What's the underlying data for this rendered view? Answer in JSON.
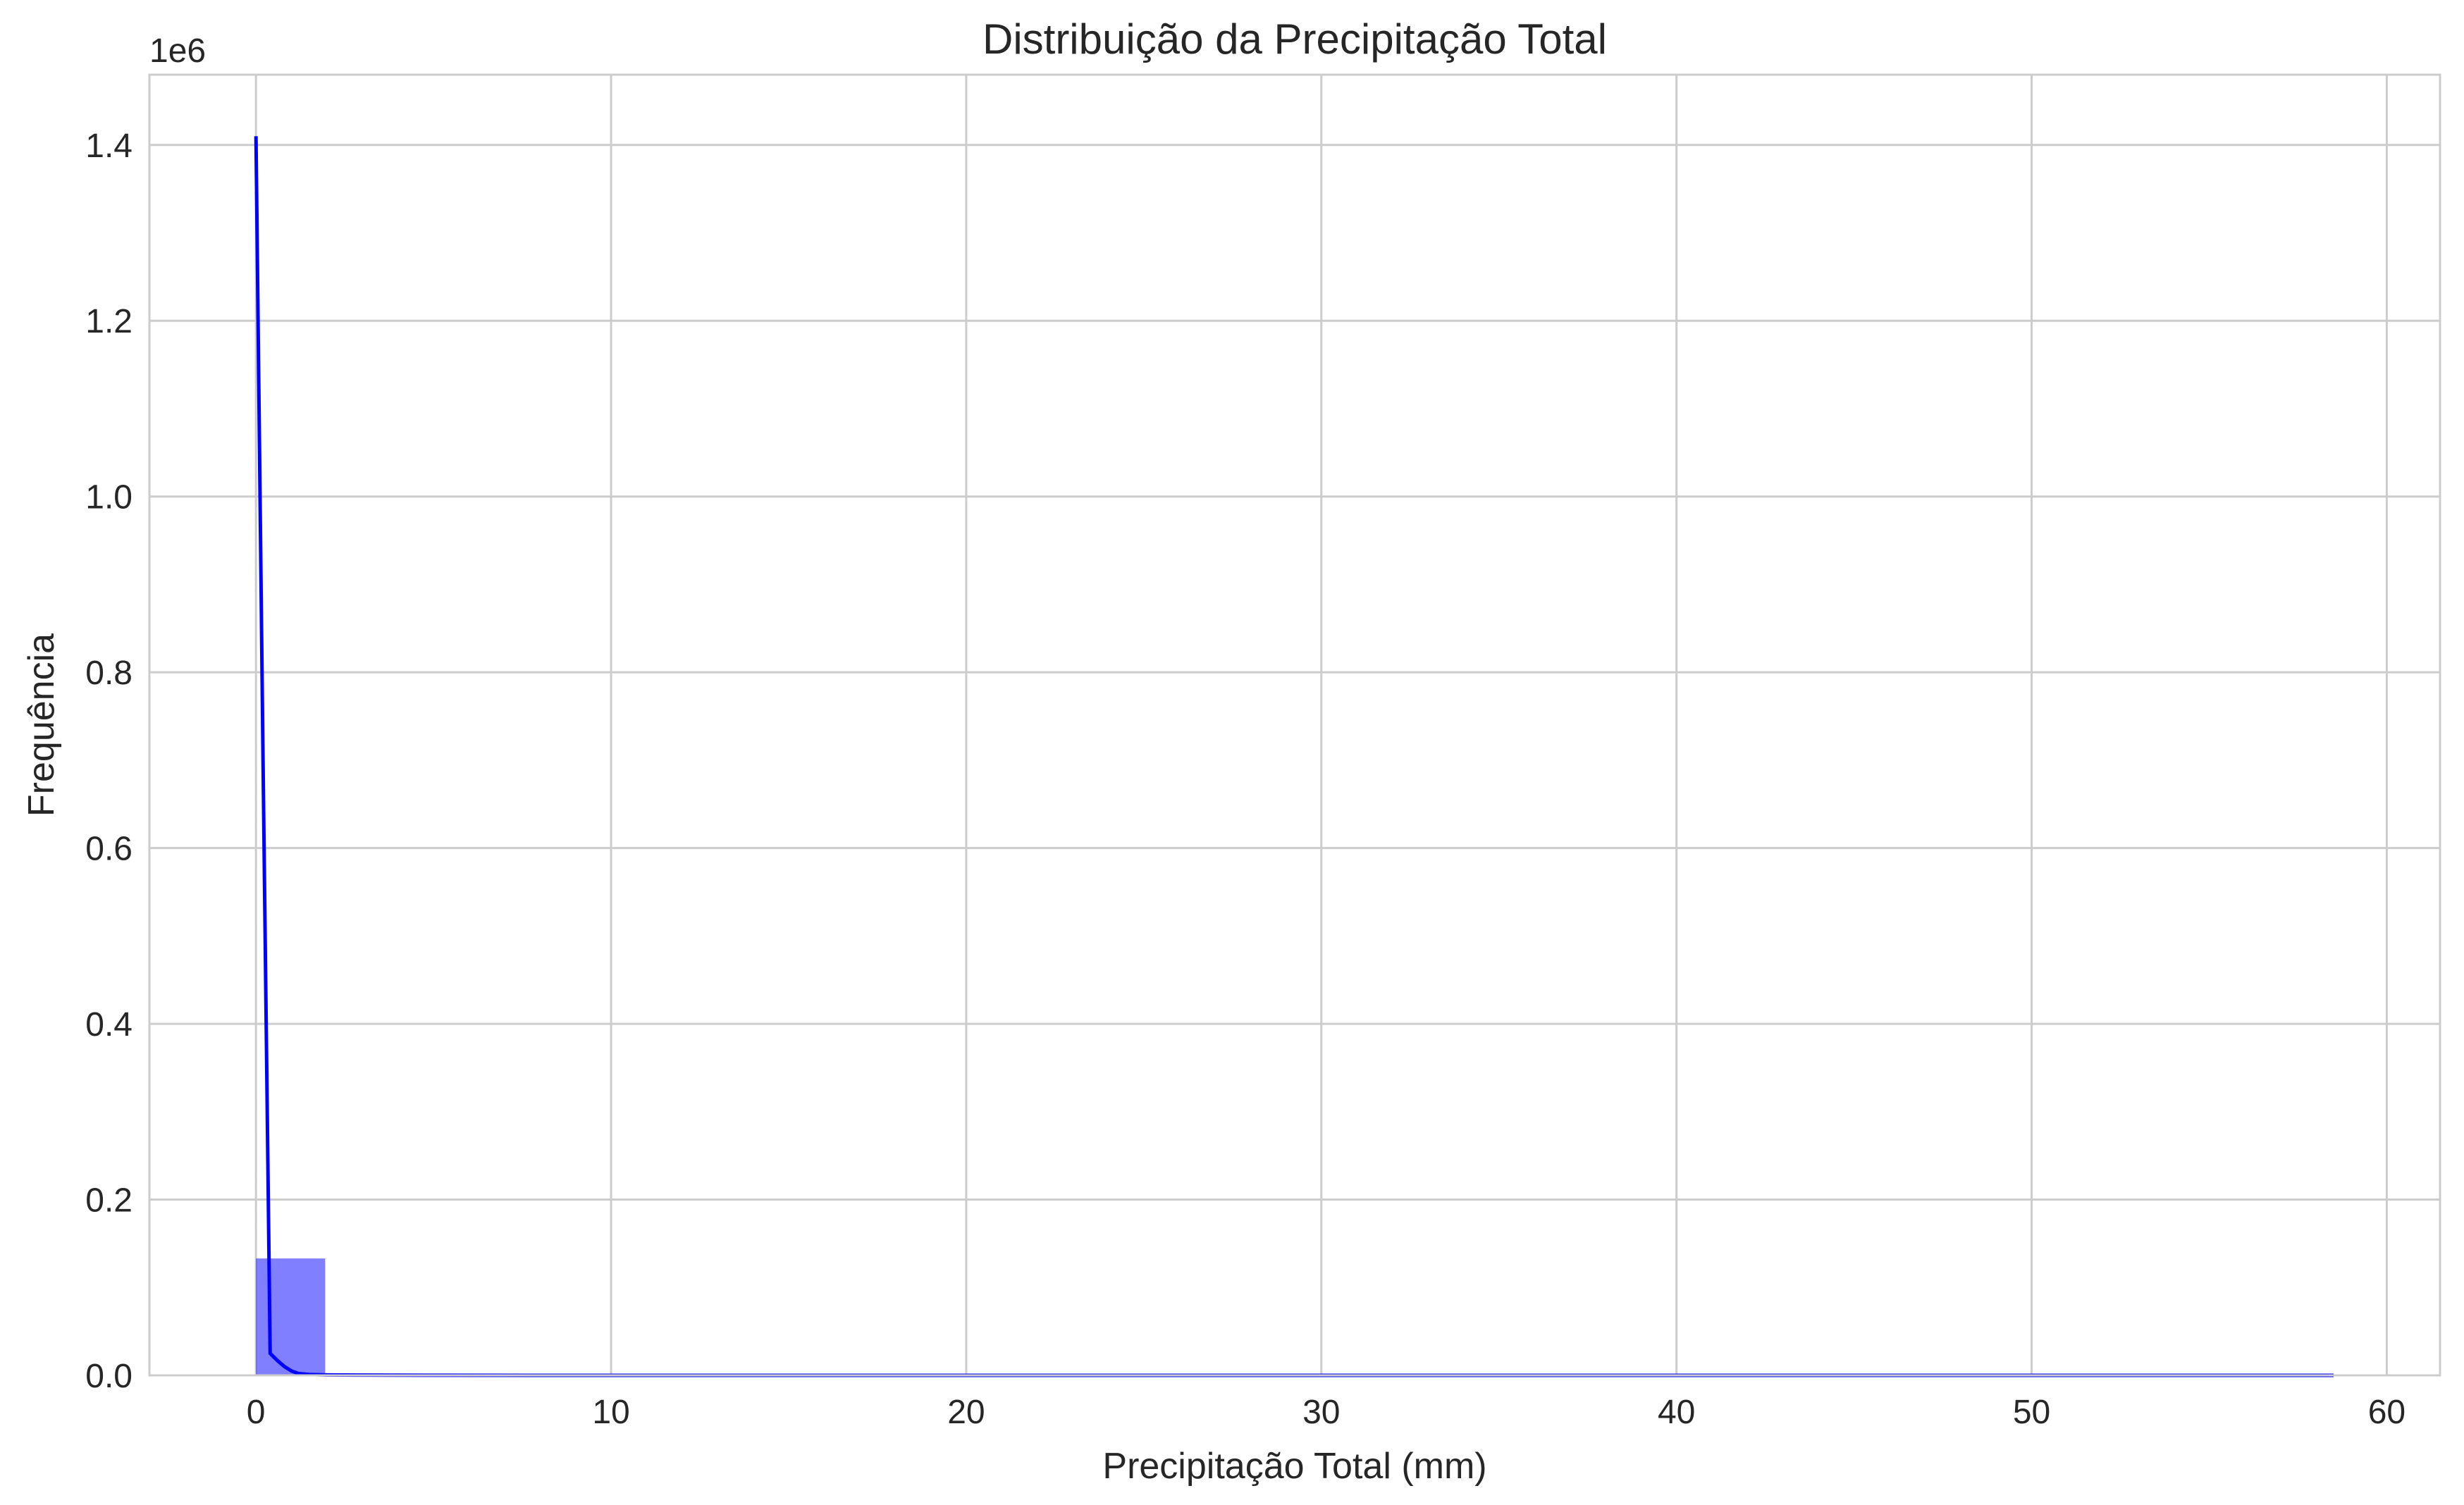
{
  "chart_data": {
    "type": "bar",
    "title": "Distribuição da Precipitação Total",
    "xlabel": "Precipitação Total (mm)",
    "ylabel": "Frequência",
    "y_offset_label": "1e6",
    "xlim": [
      -3,
      61.5
    ],
    "ylim": [
      0,
      1.48
    ],
    "x_ticks": [
      0,
      10,
      20,
      30,
      40,
      50,
      60
    ],
    "y_ticks": [
      0.0,
      0.2,
      0.4,
      0.6,
      0.8,
      1.0,
      1.2,
      1.4
    ],
    "x_tick_labels": [
      "0",
      "10",
      "20",
      "30",
      "40",
      "50",
      "60"
    ],
    "y_tick_labels": [
      "0.0",
      "0.2",
      "0.4",
      "0.6",
      "0.8",
      "1.0",
      "1.2",
      "1.4"
    ],
    "grid": true,
    "histogram": {
      "bin_width": 1.95,
      "bin_edges_start": 0,
      "values": [
        0.133,
        0.0008,
        0.0003,
        0.0001,
        0.0001,
        0,
        0,
        0,
        0,
        0,
        0,
        0,
        0,
        0,
        0,
        0,
        0,
        0,
        0,
        0,
        0,
        0,
        0,
        0,
        0,
        0,
        0,
        0,
        0,
        0
      ],
      "color": "#0000ff",
      "alpha": 0.5
    },
    "kde": {
      "x": [
        0,
        0.2,
        0.4,
        0.6,
        0.8,
        1.0,
        1.2,
        1.5,
        2.0,
        3.0,
        5.0,
        10,
        20,
        30,
        40,
        50,
        58.5
      ],
      "y": [
        1.41,
        0.7,
        0.025,
        0.017,
        0.01,
        0.005,
        0.002,
        0.001,
        0.0005,
        0.0003,
        0.0001,
        0,
        0,
        0,
        0,
        0,
        0
      ],
      "color": "#0000ff"
    }
  }
}
